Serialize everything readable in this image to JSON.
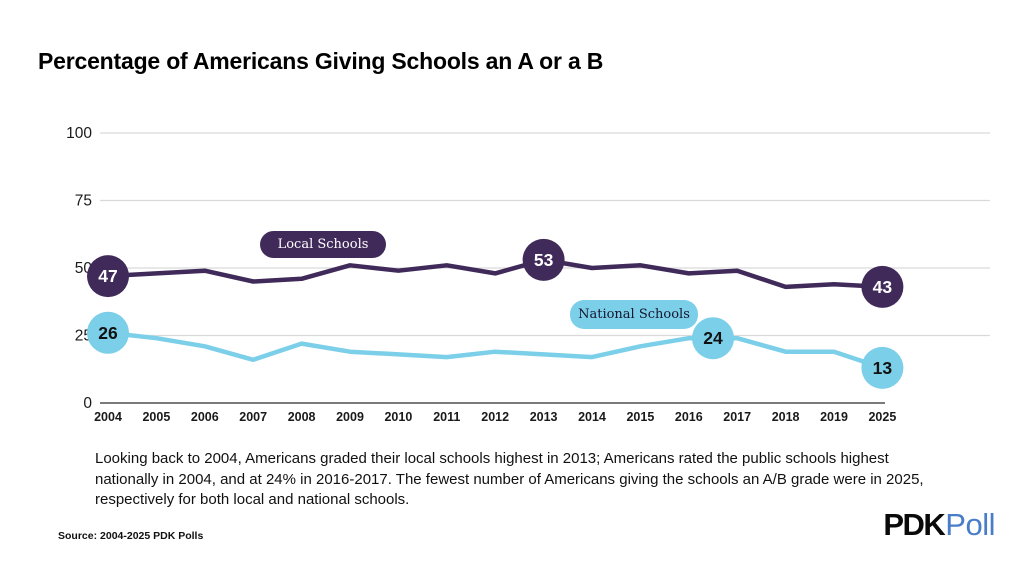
{
  "title": "Percentage of Americans Giving Schools an A or a B",
  "chart_data": {
    "type": "line",
    "x": [
      "2004",
      "2005",
      "2006",
      "2007",
      "2008",
      "2009",
      "2010",
      "2011",
      "2012",
      "2013",
      "2014",
      "2015",
      "2016",
      "2017",
      "2018",
      "2019",
      "2025"
    ],
    "series": [
      {
        "name": "Local Schools",
        "color": "#402a5a",
        "values": [
          47,
          48,
          49,
          45,
          46,
          51,
          49,
          51,
          48,
          53,
          50,
          51,
          48,
          49,
          43,
          44,
          43
        ],
        "markers": [
          {
            "x_index": 0,
            "value": 47,
            "label": "47"
          },
          {
            "x_index": 9,
            "value": 53,
            "label": "53"
          },
          {
            "x_index": 16,
            "value": 43,
            "label": "43"
          }
        ],
        "marker_text_color": "#ffffff"
      },
      {
        "name": "National Schools",
        "color": "#7ccfe9",
        "values": [
          26,
          24,
          21,
          16,
          22,
          19,
          18,
          17,
          19,
          18,
          17,
          21,
          24,
          24,
          19,
          19,
          13
        ],
        "markers": [
          {
            "x_index": 0,
            "value": 26,
            "label": "26"
          },
          {
            "x_index": 12.5,
            "value": 24,
            "label": "24"
          },
          {
            "x_index": 16,
            "value": 13,
            "label": "13"
          }
        ],
        "marker_text_color": "#111111"
      }
    ],
    "yticks": [
      "0",
      "25",
      "50",
      "75",
      "100"
    ],
    "ylim": [
      0,
      100
    ],
    "grid": true,
    "legend_position": "inline-pills",
    "xlabel": "",
    "ylabel": ""
  },
  "footnote": "Looking back to 2004, Americans graded their local schools highest in 2013; Americans rated the public schools highest nationally in 2004, and at 24% in 2016-2017. The fewest number of Americans giving the schools an A/B grade were in 2025, respectively for both local and national schools.",
  "source": "Source: 2004-2025 PDK Polls",
  "logo": {
    "pdk": "PDK",
    "poll": "Poll"
  },
  "colors": {
    "local_line": "#402a5a",
    "national_line": "#7ccfe9",
    "gridline": "#d9d9d9",
    "axis_line": "#7a7a7a",
    "logo_poll_blue": "#4a7dc9"
  }
}
